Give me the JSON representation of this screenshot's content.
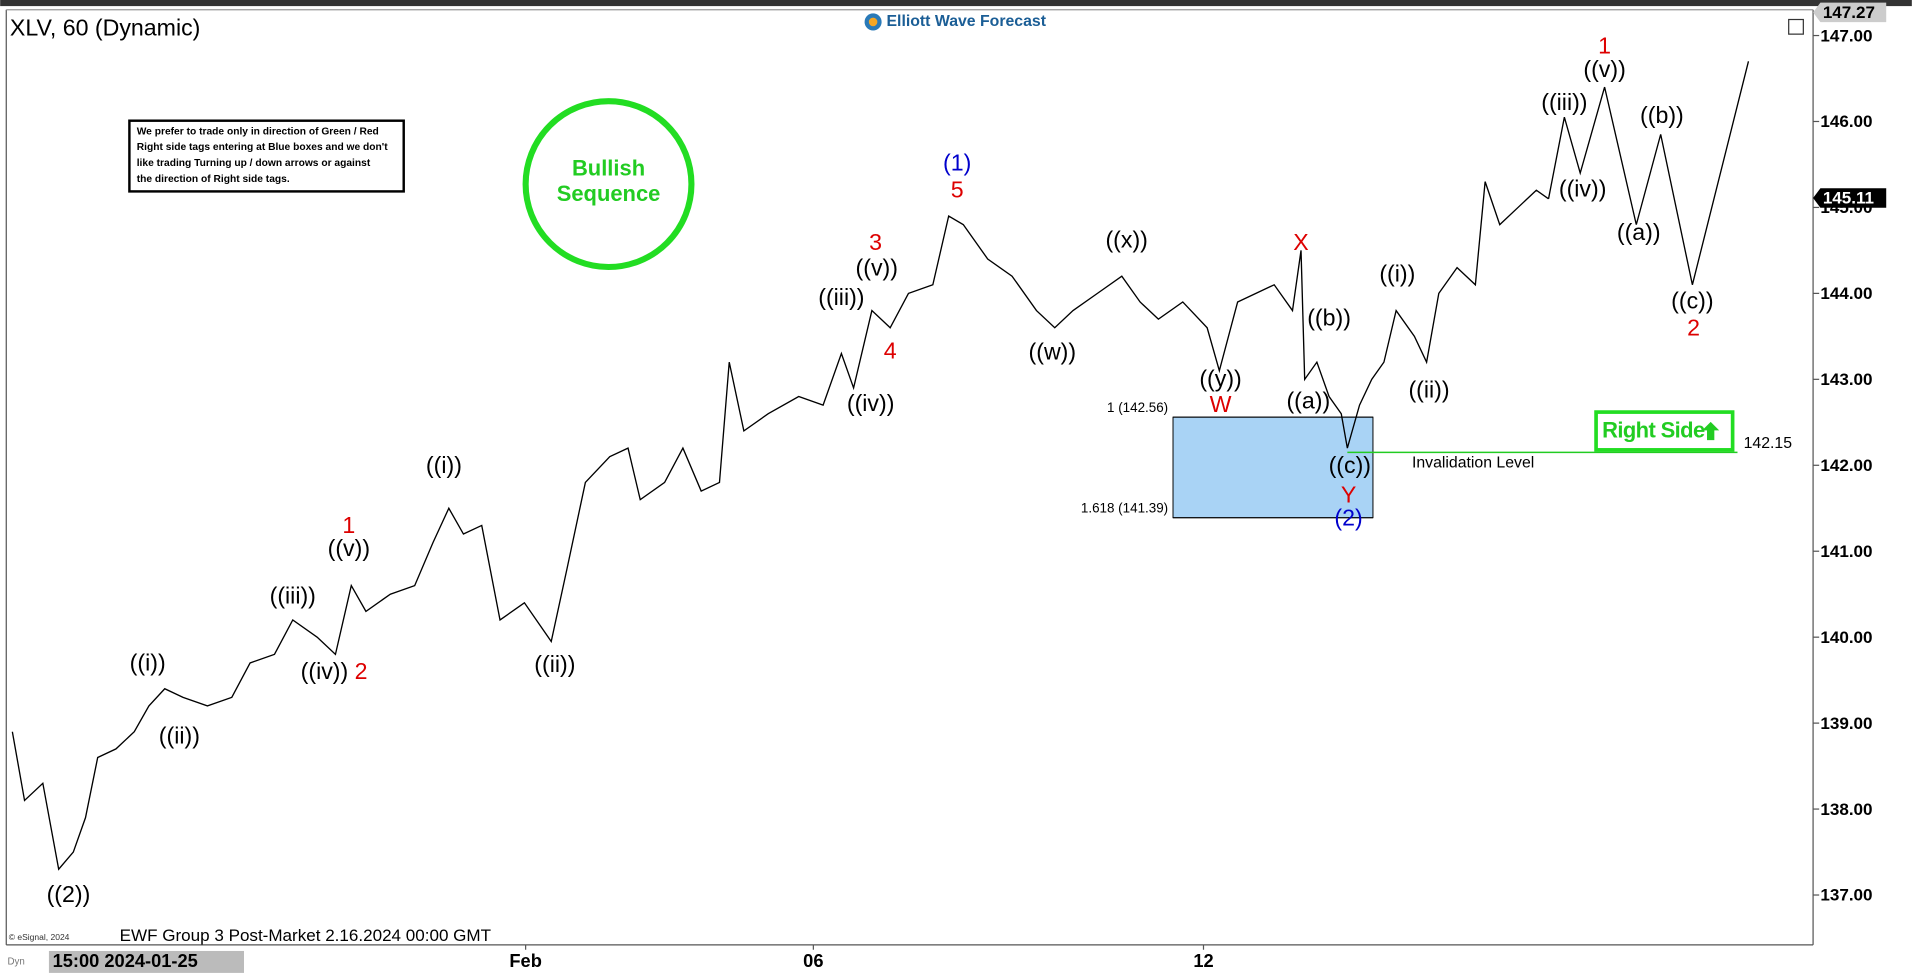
{
  "chart_data": {
    "type": "line",
    "title": "XLV, 60 (Dynamic)",
    "brand": "Elliott Wave Forecast",
    "note": [
      "We prefer to trade only in direction of Green / Red",
      "Right side tags entering at Blue boxes and we don't",
      "like trading Turning up / down arrows or against",
      "the direction of Right side tags."
    ],
    "badge": [
      "Bullish",
      "Sequence"
    ],
    "right_side": "Right Side",
    "footer": "EWF Group 3 Post-Market 2.16.2024 00:00 GMT",
    "copyright": "© eSignal, 2024",
    "dyn": "Dyn",
    "cursor_label": "15:00 2024-01-25",
    "xlim": [
      0,
      1482
    ],
    "xticks": [
      {
        "value": 426,
        "label": "Feb"
      },
      {
        "value": 662,
        "label": "06"
      },
      {
        "value": 982,
        "label": "12"
      }
    ],
    "ylim": [
      136.42,
      147.3
    ],
    "yticks": [
      {
        "value": 137,
        "label": "137.00"
      },
      {
        "value": 138,
        "label": "138.00"
      },
      {
        "value": 139,
        "label": "139.00"
      },
      {
        "value": 140,
        "label": "140.00"
      },
      {
        "value": 141,
        "label": "141.00"
      },
      {
        "value": 142,
        "label": "142.00"
      },
      {
        "value": 143,
        "label": "143.00"
      },
      {
        "value": 144,
        "label": "144.00"
      },
      {
        "value": 145,
        "label": "145.00"
      },
      {
        "value": 146,
        "label": "146.00"
      },
      {
        "value": 147,
        "label": "147.00"
      }
    ],
    "series": [
      {
        "color": "#000000",
        "x": [
          5,
          15,
          30,
          43,
          55,
          65,
          75,
          90,
          105,
          117,
          130,
          145,
          165,
          185,
          200,
          220,
          235,
          255,
          270,
          283,
          295,
          315,
          335,
          350,
          363,
          375,
          390,
          405,
          425,
          447,
          460,
          475,
          495,
          510,
          520,
          540,
          555,
          570,
          585,
          593,
          605,
          625,
          650,
          670,
          685,
          695,
          710,
          725,
          740,
          760,
          773,
          785,
          805,
          825,
          845,
          860,
          875,
          895,
          915,
          930,
          945,
          965,
          985,
          995,
          1010,
          1025,
          1040,
          1055,
          1062,
          1065,
          1075,
          1085,
          1095,
          1100,
          1110,
          1120,
          1130,
          1140,
          1155,
          1165,
          1175,
          1190,
          1205,
          1213,
          1225,
          1240,
          1255,
          1265
        ],
        "values": [
          138.9,
          138.1,
          138.3,
          137.3,
          137.5,
          137.9,
          138.6,
          138.7,
          138.9,
          139.2,
          139.4,
          139.3,
          139.2,
          139.3,
          139.7,
          139.8,
          140.2,
          140.0,
          139.8,
          140.6,
          140.3,
          140.5,
          140.6,
          141.1,
          141.5,
          141.2,
          141.3,
          140.2,
          140.4,
          139.95,
          140.8,
          141.8,
          142.1,
          142.2,
          141.6,
          141.8,
          142.2,
          141.7,
          141.8,
          143.2,
          142.4,
          142.6,
          142.8,
          142.7,
          143.3,
          142.9,
          143.8,
          143.6,
          144.0,
          144.1,
          144.9,
          144.8,
          144.4,
          144.2,
          143.8,
          143.6,
          143.8,
          144.0,
          144.2,
          143.9,
          143.7,
          143.9,
          143.6,
          143.1,
          143.9,
          144.0,
          144.1,
          143.8,
          144.5,
          143.0,
          143.2,
          142.8,
          142.6,
          142.2,
          142.7,
          143.0,
          143.2,
          143.8,
          143.5,
          143.2,
          144.0,
          144.3,
          144.1,
          145.3,
          144.8,
          145.0,
          145.2,
          145.1
        ]
      },
      {
        "color": "#000000",
        "x": [
          1265,
          1278,
          1291,
          1311,
          1337,
          1357,
          1383,
          1429
        ],
        "values": [
          145.1,
          146.05,
          145.4,
          146.4,
          144.8,
          145.85,
          144.1,
          146.7
        ]
      }
    ],
    "fib_box": {
      "color": "#a9d3f5",
      "levels": [
        {
          "value": 142.56,
          "label": "1 (142.56)"
        },
        {
          "value": 141.39,
          "label": "1.618 (141.39)"
        }
      ]
    },
    "invalidation": {
      "value": 142.15,
      "label": "Invalidation Level",
      "color": "#22cc22"
    },
    "price_tags": [
      {
        "value": 147.27,
        "color": "#cccccc"
      },
      {
        "value": 145.11,
        "color": "#000000"
      }
    ],
    "annotations": [
      {
        "text": "((2))",
        "color": "#000000"
      },
      {
        "text": "((i))",
        "color": "#000000"
      },
      {
        "text": "((ii))",
        "color": "#000000"
      },
      {
        "text": "((iii))",
        "color": "#000000"
      },
      {
        "text": "((iv))",
        "color": "#000000"
      },
      {
        "text": "((v))",
        "color": "#000000"
      },
      {
        "text": "1",
        "color": "#dd0000"
      },
      {
        "text": "2",
        "color": "#dd0000"
      },
      {
        "text": "((i))",
        "color": "#000000"
      },
      {
        "text": "((ii))",
        "color": "#000000"
      },
      {
        "text": "((iii))",
        "color": "#000000"
      },
      {
        "text": "((iv))",
        "color": "#000000"
      },
      {
        "text": "((v))",
        "color": "#000000"
      },
      {
        "text": "3",
        "color": "#dd0000"
      },
      {
        "text": "4",
        "color": "#dd0000"
      },
      {
        "text": "(1)",
        "color": "#0000cc"
      },
      {
        "text": "5",
        "color": "#dd0000"
      },
      {
        "text": "((w))",
        "color": "#000000"
      },
      {
        "text": "((x))",
        "color": "#000000"
      },
      {
        "text": "((y))",
        "color": "#000000"
      },
      {
        "text": "W",
        "color": "#dd0000"
      },
      {
        "text": "X",
        "color": "#dd0000"
      },
      {
        "text": "((a))",
        "color": "#000000"
      },
      {
        "text": "((b))",
        "color": "#000000"
      },
      {
        "text": "((c))",
        "color": "#000000"
      },
      {
        "text": "Y",
        "color": "#dd0000"
      },
      {
        "text": "(2)",
        "color": "#0000cc"
      },
      {
        "text": "((i))",
        "color": "#000000"
      },
      {
        "text": "((ii))",
        "color": "#000000"
      },
      {
        "text": "((iii))",
        "color": "#000000"
      },
      {
        "text": "((iv))",
        "color": "#000000"
      },
      {
        "text": "((v))",
        "color": "#000000"
      },
      {
        "text": "1",
        "color": "#dd0000"
      },
      {
        "text": "((a))",
        "color": "#000000"
      },
      {
        "text": "((b))",
        "color": "#000000"
      },
      {
        "text": "((c))",
        "color": "#000000"
      },
      {
        "text": "2",
        "color": "#dd0000"
      }
    ]
  }
}
